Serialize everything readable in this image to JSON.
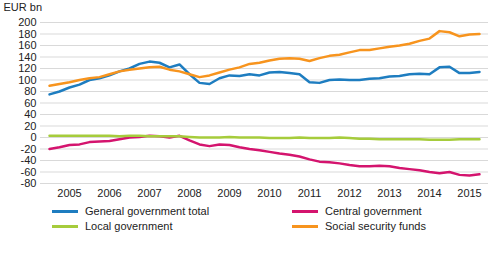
{
  "chart_data": {
    "type": "line",
    "y_label": "EUR bn",
    "categories": [
      null,
      null,
      "2005",
      null,
      null,
      null,
      "2006",
      null,
      null,
      null,
      "2007",
      null,
      null,
      null,
      "2008",
      null,
      null,
      null,
      "2009",
      null,
      null,
      null,
      "2010",
      null,
      null,
      null,
      "2011",
      null,
      null,
      null,
      "2012",
      null,
      null,
      null,
      "2013",
      null,
      null,
      null,
      "2014",
      null,
      null,
      null,
      "2015",
      null
    ],
    "series": [
      {
        "name": "General government total",
        "color": "#1e7dc0",
        "values": [
          75,
          80,
          87,
          92,
          100,
          103,
          108,
          115,
          120,
          128,
          132,
          130,
          122,
          127,
          110,
          95,
          93,
          103,
          108,
          107,
          110,
          108,
          113,
          114,
          112,
          110,
          96,
          95,
          100,
          101,
          100,
          100,
          102,
          103,
          106,
          107,
          110,
          111,
          110,
          122,
          123,
          112,
          112,
          114
        ]
      },
      {
        "name": "Central government",
        "color": "#d4146e",
        "values": [
          -20,
          -17,
          -13,
          -12,
          -8,
          -7,
          -6,
          -3,
          0,
          1,
          3,
          2,
          0,
          3,
          -5,
          -12,
          -15,
          -12,
          -13,
          -17,
          -20,
          -22,
          -25,
          -28,
          -30,
          -33,
          -38,
          -42,
          -43,
          -45,
          -48,
          -50,
          -50,
          -49,
          -50,
          -53,
          -55,
          -57,
          -60,
          -62,
          -60,
          -65,
          -66,
          -64
        ]
      },
      {
        "name": "Local government",
        "color": "#a6cc3c",
        "values": [
          3,
          3,
          3,
          3,
          3,
          3,
          3,
          2,
          3,
          3,
          2,
          2,
          2,
          2,
          1,
          0,
          0,
          0,
          1,
          0,
          0,
          0,
          -1,
          -1,
          -1,
          0,
          -1,
          -1,
          -1,
          0,
          -1,
          -2,
          -2,
          -3,
          -3,
          -3,
          -3,
          -3,
          -4,
          -4,
          -4,
          -3,
          -3,
          -3
        ]
      },
      {
        "name": "Social security funds",
        "color": "#f7941e",
        "values": [
          90,
          93,
          96,
          100,
          103,
          105,
          110,
          115,
          118,
          120,
          122,
          123,
          118,
          115,
          110,
          105,
          108,
          113,
          118,
          122,
          128,
          130,
          134,
          137,
          138,
          137,
          133,
          138,
          142,
          144,
          148,
          152,
          152,
          155,
          158,
          160,
          163,
          168,
          172,
          185,
          183,
          176,
          179,
          180
        ]
      }
    ],
    "ylim": [
      -80,
      200
    ],
    "yticks": [
      -80,
      -60,
      -40,
      -20,
      0,
      20,
      40,
      60,
      80,
      100,
      120,
      140,
      160,
      180,
      200
    ],
    "grid": true,
    "legend": "bottom"
  }
}
